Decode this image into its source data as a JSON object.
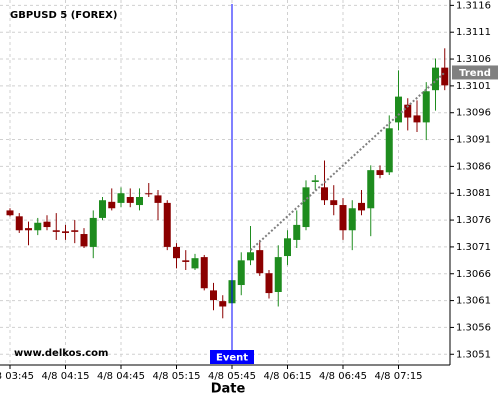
{
  "chart_data": {
    "type": "candlestick",
    "title": "GBPUSD 5 (FOREX)",
    "watermark": "www.delkos.com",
    "x_label": "Date",
    "categories": [
      "4/8 03:45",
      null,
      null,
      null,
      null,
      null,
      "4/8 04:15",
      null,
      null,
      null,
      null,
      null,
      "4/8 04:45",
      null,
      null,
      null,
      null,
      null,
      "4/8 05:15",
      null,
      null,
      null,
      null,
      null,
      "4/8 05:45",
      null,
      null,
      null,
      null,
      null,
      "4/8 06:15",
      null,
      null,
      null,
      null,
      null,
      "4/8 06:45",
      null,
      null,
      null,
      null,
      null,
      "4/8 07:15",
      null,
      null,
      null,
      null,
      null
    ],
    "open": [
      1.30778,
      1.30767,
      1.30745,
      1.30741,
      1.30757,
      1.30741,
      1.30739,
      1.30741,
      1.30734,
      1.3071,
      1.30764,
      1.30794,
      1.30792,
      1.30803,
      1.30788,
      1.3081,
      1.30806,
      1.30792,
      1.3071,
      1.30685,
      1.3067,
      1.30691,
      1.30629,
      1.30609,
      1.30605,
      1.30639,
      1.30685,
      1.30704,
      1.30661,
      1.30626,
      1.30693,
      1.30723,
      1.30747,
      1.30831,
      1.30821,
      1.30797,
      1.30788,
      1.30741,
      1.30792,
      1.30782,
      1.30853,
      1.30849,
      1.30942,
      1.30975,
      1.30955,
      1.30942,
      1.31002,
      1.31044
    ],
    "high": [
      1.30782,
      1.30773,
      1.30757,
      1.30764,
      1.30769,
      1.30773,
      1.30751,
      1.3076,
      1.30745,
      1.30778,
      1.30803,
      1.30819,
      1.30821,
      1.30819,
      1.30819,
      1.30829,
      1.30816,
      1.30797,
      1.30717,
      1.30704,
      1.30697,
      1.30695,
      1.30643,
      1.3062,
      1.30652,
      1.307,
      1.30749,
      1.30723,
      1.30667,
      1.30713,
      1.30741,
      1.30778,
      1.30834,
      1.30844,
      1.30871,
      1.30825,
      1.30801,
      1.30797,
      1.30816,
      1.30862,
      1.30862,
      1.30955,
      1.31039,
      1.30987,
      1.30983,
      1.31017,
      1.31061,
      1.3108
    ],
    "low": [
      1.30767,
      1.30736,
      1.30713,
      1.30732,
      1.30741,
      1.30723,
      1.30723,
      1.30717,
      1.30708,
      1.30689,
      1.3076,
      1.30778,
      1.30784,
      1.30784,
      1.30778,
      1.30803,
      1.3076,
      1.30704,
      1.3067,
      1.30667,
      1.30667,
      1.30629,
      1.30592,
      1.30577,
      1.30592,
      1.3062,
      1.30676,
      1.30656,
      1.30614,
      1.30599,
      1.30676,
      1.30708,
      1.30741,
      1.30816,
      1.30788,
      1.30769,
      1.30723,
      1.30704,
      1.30769,
      1.3073,
      1.30838,
      1.30844,
      1.30927,
      1.30927,
      1.30924,
      1.30909,
      1.30964,
      1.31002
    ],
    "close": [
      1.30769,
      1.30741,
      1.30741,
      1.30755,
      1.30747,
      1.30738,
      1.30736,
      1.30738,
      1.30711,
      1.30764,
      1.30797,
      1.30782,
      1.3081,
      1.30792,
      1.30803,
      1.30808,
      1.30792,
      1.3071,
      1.30689,
      1.30682,
      1.30689,
      1.30633,
      1.30611,
      1.30599,
      1.30648,
      1.30685,
      1.307,
      1.30661,
      1.30624,
      1.30691,
      1.30726,
      1.30751,
      1.30821,
      1.30834,
      1.30797,
      1.30788,
      1.30741,
      1.30782,
      1.30778,
      1.30853,
      1.30844,
      1.30931,
      1.3099,
      1.30951,
      1.30942,
      1.31,
      1.31044,
      1.31011
    ],
    "up_color": "#1e8c1e",
    "down_color": "#8b0000",
    "ylim": [
      1.3049,
      1.3117
    ],
    "yticks": [
      1.3051,
      1.3056,
      1.3061,
      1.3066,
      1.3071,
      1.3076,
      1.3081,
      1.3086,
      1.3091,
      1.3096,
      1.3101,
      1.3106,
      1.3111,
      1.3116
    ],
    "grid": true,
    "event": {
      "label": "Event",
      "index": 24,
      "color": "#0000ff"
    },
    "trend": {
      "label": "Trend",
      "start_index": 26,
      "end_index": 47,
      "values": [
        1.30704,
        1.31035
      ],
      "color": "#808080"
    }
  }
}
